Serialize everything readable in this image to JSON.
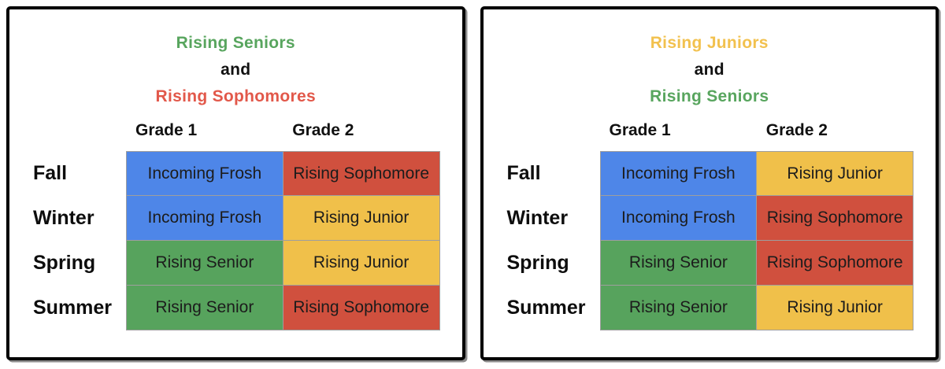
{
  "palette": {
    "blue": "#4e86e8",
    "red": "#d0503e",
    "green": "#57a35d",
    "yellow": "#f0c04a",
    "title_green": "#58a55e",
    "title_red": "#e2584a",
    "title_yellow": "#f2c14e",
    "title_black": "#111111"
  },
  "panels": [
    {
      "title_lines": [
        {
          "text": "Rising Seniors",
          "color": "title_green"
        },
        {
          "text": "and",
          "color": "title_black"
        },
        {
          "text": "Rising Sophomores",
          "color": "title_red"
        }
      ],
      "column_headers": [
        "Grade 1",
        "Grade 2"
      ],
      "rows": [
        {
          "label": "Fall",
          "cells": [
            {
              "text": "Incoming Frosh",
              "color": "blue"
            },
            {
              "text": "Rising Sophomore",
              "color": "red"
            }
          ]
        },
        {
          "label": "Winter",
          "cells": [
            {
              "text": "Incoming Frosh",
              "color": "blue"
            },
            {
              "text": "Rising Junior",
              "color": "yellow"
            }
          ]
        },
        {
          "label": "Spring",
          "cells": [
            {
              "text": "Rising Senior",
              "color": "green"
            },
            {
              "text": "Rising Junior",
              "color": "yellow"
            }
          ]
        },
        {
          "label": "Summer",
          "cells": [
            {
              "text": "Rising Senior",
              "color": "green"
            },
            {
              "text": "Rising Sophomore",
              "color": "red"
            }
          ]
        }
      ]
    },
    {
      "title_lines": [
        {
          "text": "Rising Juniors",
          "color": "title_yellow"
        },
        {
          "text": "and",
          "color": "title_black"
        },
        {
          "text": "Rising Seniors",
          "color": "title_green"
        }
      ],
      "column_headers": [
        "Grade 1",
        "Grade 2"
      ],
      "rows": [
        {
          "label": "Fall",
          "cells": [
            {
              "text": "Incoming Frosh",
              "color": "blue"
            },
            {
              "text": "Rising Junior",
              "color": "yellow"
            }
          ]
        },
        {
          "label": "Winter",
          "cells": [
            {
              "text": "Incoming Frosh",
              "color": "blue"
            },
            {
              "text": "Rising Sophomore",
              "color": "red"
            }
          ]
        },
        {
          "label": "Spring",
          "cells": [
            {
              "text": "Rising Senior",
              "color": "green"
            },
            {
              "text": "Rising Sophomore",
              "color": "red"
            }
          ]
        },
        {
          "label": "Summer",
          "cells": [
            {
              "text": "Rising Senior",
              "color": "green"
            },
            {
              "text": "Rising Junior",
              "color": "yellow"
            }
          ]
        }
      ]
    }
  ]
}
